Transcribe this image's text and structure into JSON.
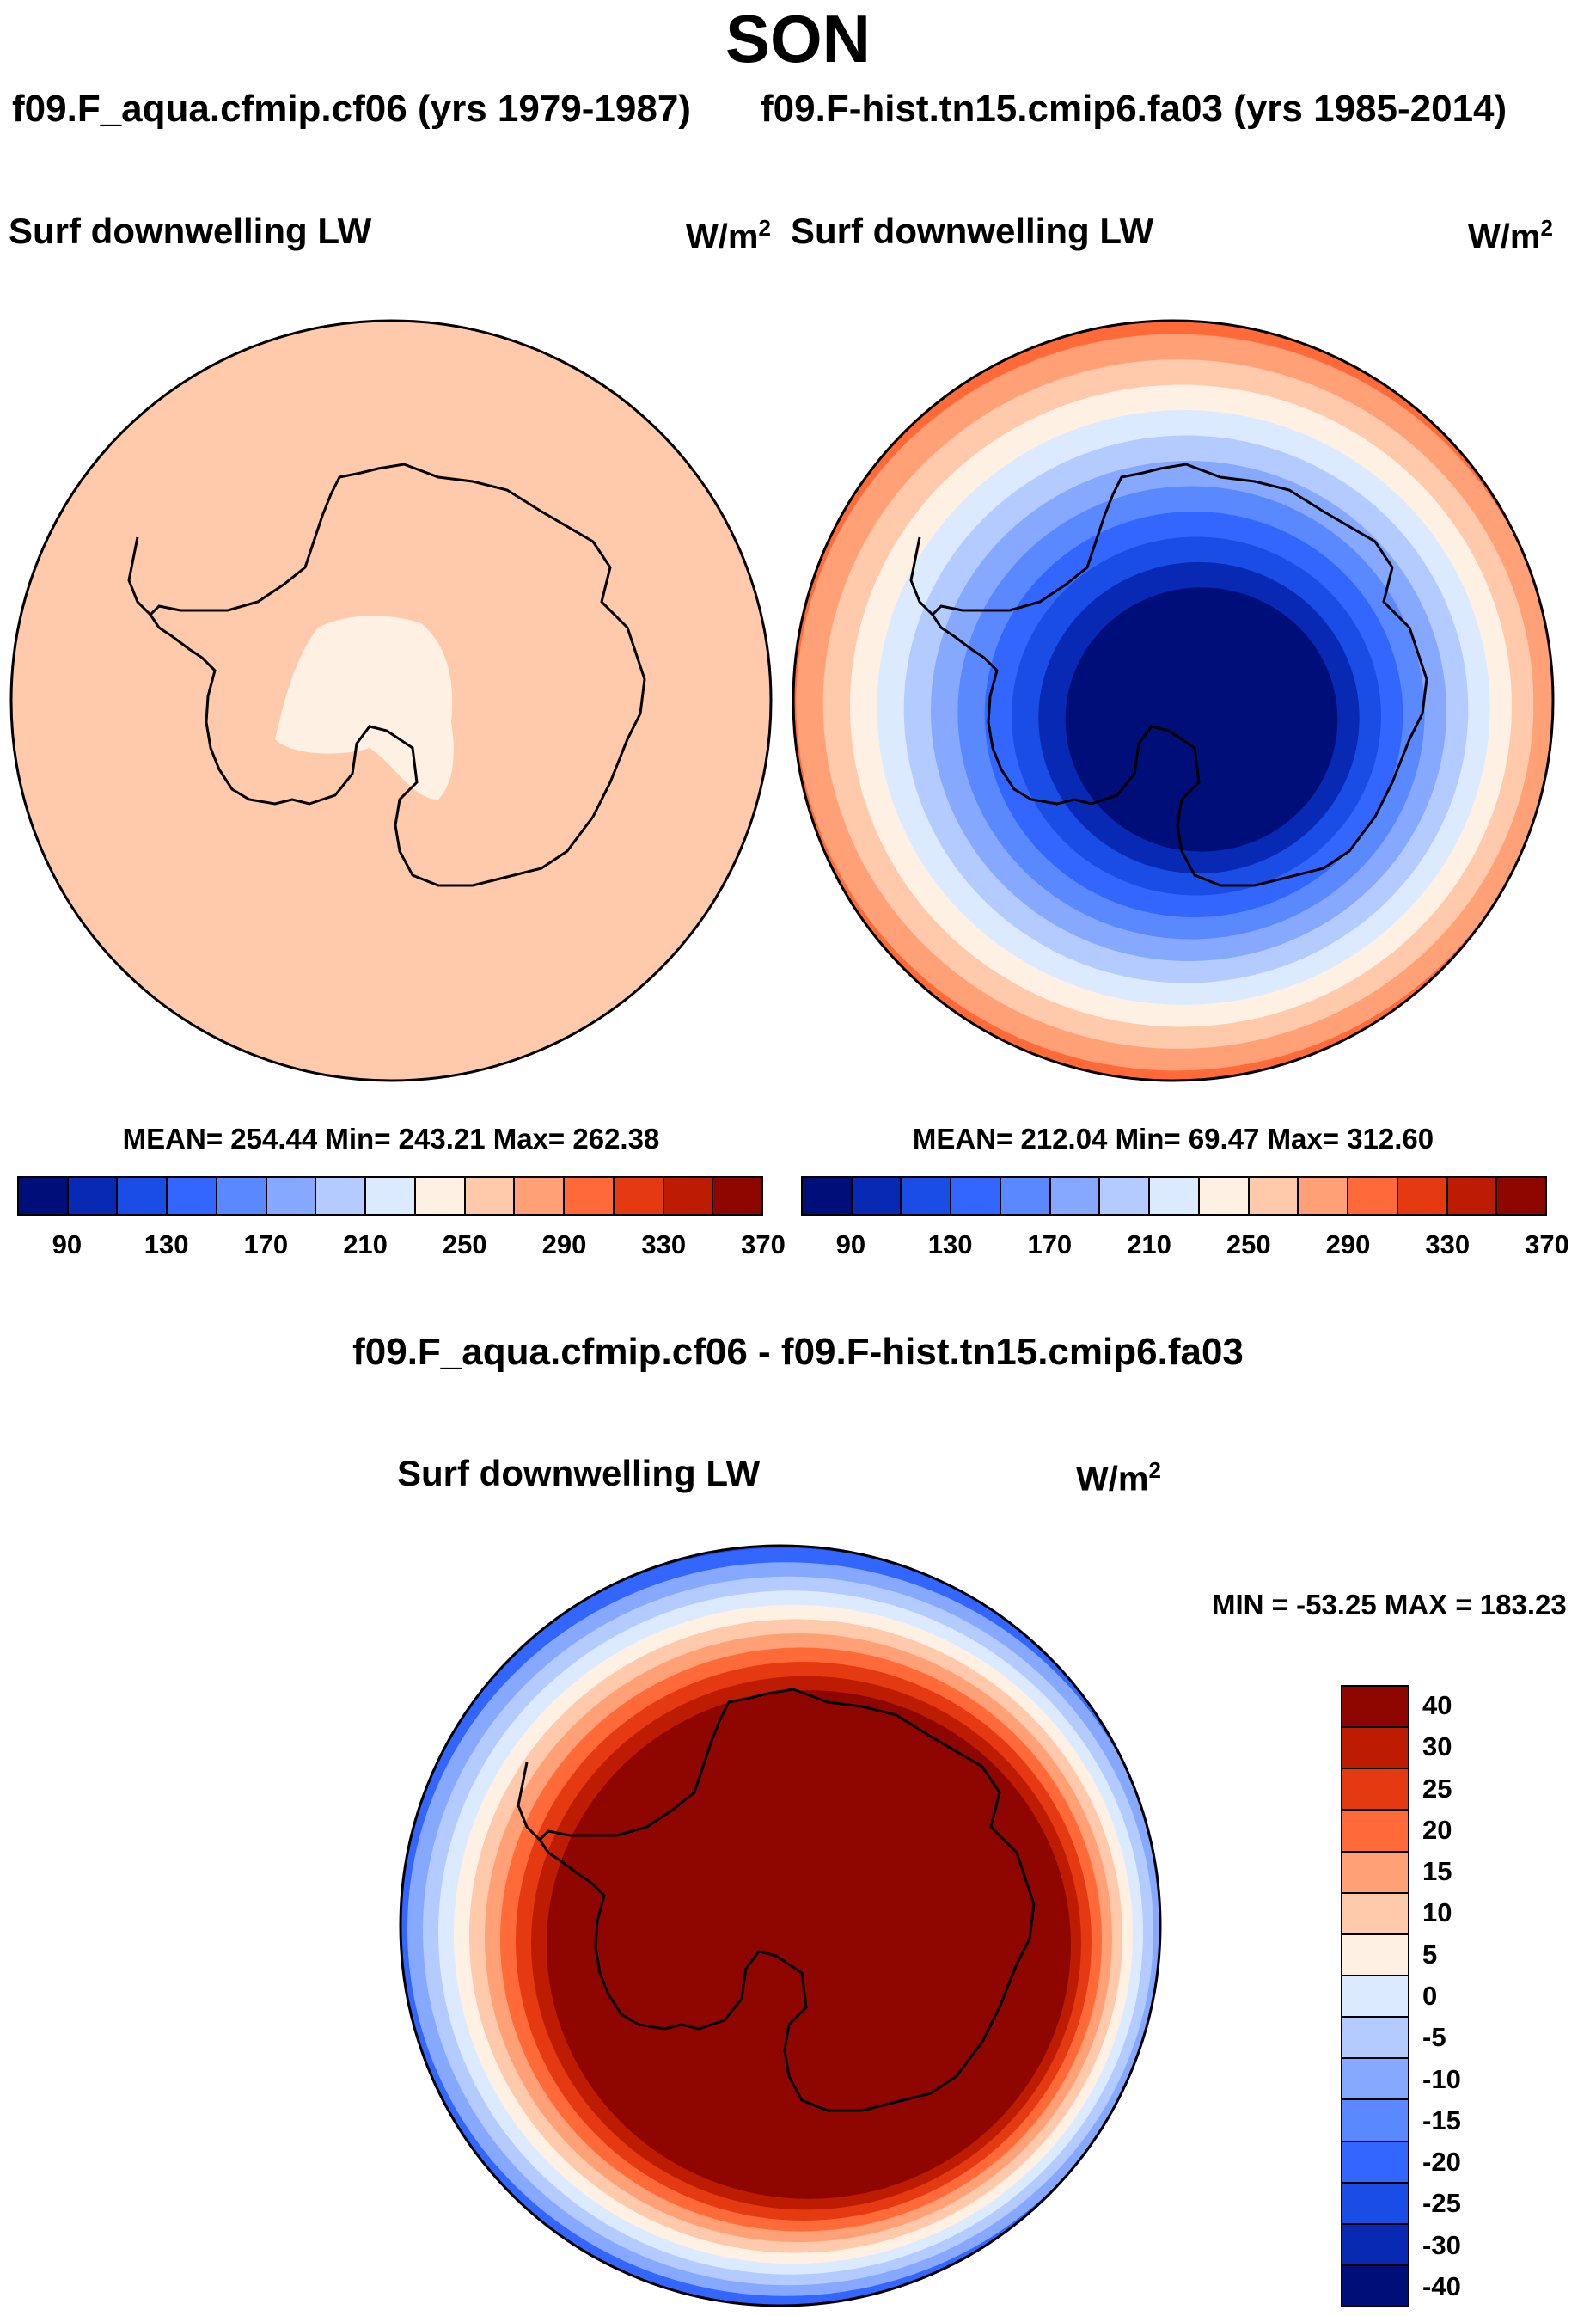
{
  "season": "SON",
  "case1": {
    "title": "f09.F_aqua.cfmip.cf06 (yrs 1979-1987)",
    "variable": "Surf downwelling LW",
    "units": "W/m",
    "units_sup": "2",
    "stats": "MEAN= 254.44  Min= 243.21  Max= 262.38"
  },
  "case2": {
    "title": "f09.F-hist.tn15.cmip6.fa03 (yrs 1985-2014)",
    "variable": "Surf downwelling LW",
    "units": "W/m",
    "units_sup": "2",
    "stats": "MEAN= 212.04  Min=  69.47  Max= 312.60"
  },
  "diff": {
    "title": "f09.F_aqua.cfmip.cf06 - f09.F-hist.tn15.cmip6.fa03",
    "variable": "Surf downwelling LW",
    "units": "W/m",
    "units_sup": "2",
    "minmax": "MIN = -53.25 MAX = 183.23"
  },
  "colorbar_abs": {
    "colors": [
      "#000e7a",
      "#0729b4",
      "#1a4de6",
      "#3366ff",
      "#5a89ff",
      "#86a9ff",
      "#b3cbff",
      "#dceaff",
      "#fff0e4",
      "#ffc9ab",
      "#ffa076",
      "#ff6a38",
      "#e53a11",
      "#bd1c03",
      "#8f0600"
    ],
    "tick_labels": [
      "90",
      "130",
      "170",
      "210",
      "250",
      "290",
      "330",
      "370"
    ]
  },
  "colorbar_diff": {
    "colors": [
      "#8f0600",
      "#bd1c03",
      "#e53a11",
      "#ff6a38",
      "#ffa076",
      "#ffc9ab",
      "#fff0e4",
      "#dceaff",
      "#b3cbff",
      "#86a9ff",
      "#5a89ff",
      "#3366ff",
      "#1a4de6",
      "#0729b4",
      "#000e7a"
    ],
    "tick_labels": [
      "40",
      "30",
      "25",
      "20",
      "15",
      "10",
      "5",
      "0",
      "-5",
      "-10",
      "-15",
      "-20",
      "-25",
      "-30",
      "-40"
    ]
  },
  "map_colors": {
    "ocean_uniform": "#ffc9ab",
    "interior_patch": "#fff0e4",
    "rings_case2": [
      "#ff6a38",
      "#ffa076",
      "#ffc9ab",
      "#fff0e4",
      "#dceaff",
      "#b3cbff",
      "#86a9ff",
      "#5a89ff",
      "#3366ff",
      "#1a4de6",
      "#0729b4",
      "#000e7a"
    ],
    "rings_diff": [
      "#1a4de6",
      "#3366ff",
      "#86a9ff",
      "#b3cbff",
      "#dceaff",
      "#fff0e4",
      "#ffc9ab",
      "#ffa076",
      "#ff6a38",
      "#e53a11",
      "#bd1c03",
      "#8f0600"
    ]
  }
}
